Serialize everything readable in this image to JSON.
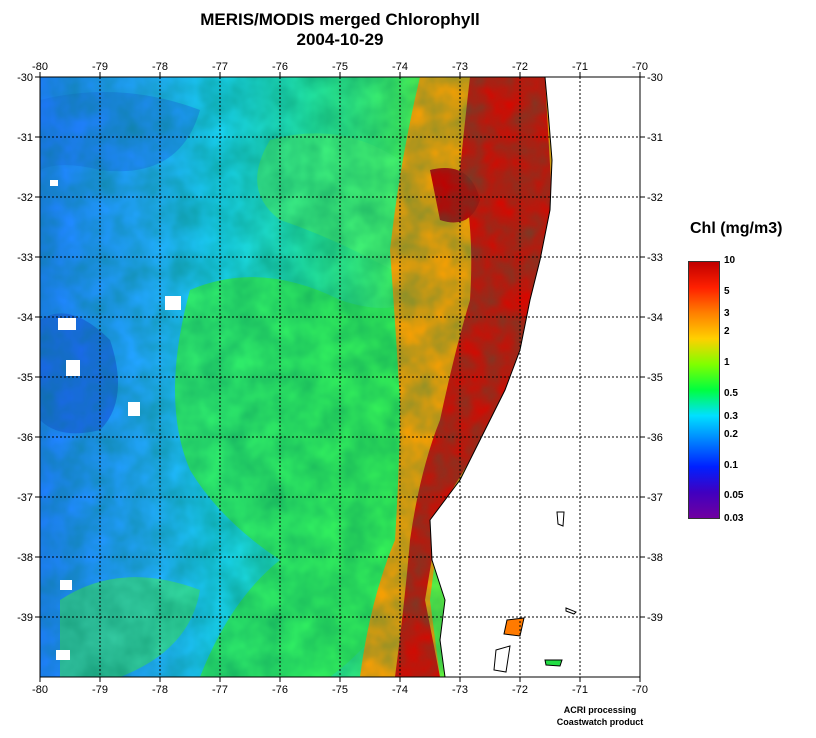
{
  "title_line1": "MERIS/MODIS merged Chlorophyll",
  "title_line2": "2004-10-29",
  "x_ticks": [
    "-80",
    "-79",
    "-78",
    "-77",
    "-76",
    "-75",
    "-74",
    "-73",
    "-72",
    "-71",
    "-70"
  ],
  "y_ticks": [
    "-30",
    "-31",
    "-32",
    "-33",
    "-34",
    "-35",
    "-36",
    "-37",
    "-38",
    "-39"
  ],
  "lon_range": [
    -80,
    -70
  ],
  "lat_range": [
    -30,
    -40
  ],
  "grid": "dashed",
  "colorbar": {
    "title": "Chl (mg/m3)",
    "labels": [
      "10",
      "5",
      "3",
      "2",
      "1",
      "0.5",
      "0.3",
      "0.2",
      "0.1",
      "0.05",
      "0.03"
    ],
    "scale": "log",
    "colors": [
      "#c00000",
      "#ff2000",
      "#ff8000",
      "#ffd000",
      "#80ff00",
      "#00ff40",
      "#00e0ff",
      "#0080ff",
      "#0020ff",
      "#4000c0",
      "#7000a0"
    ]
  },
  "field_colors": {
    "offshore": "#1e90ff",
    "mid_ocean": "#00ccff",
    "transition": "#33ff66",
    "coastal": "#ff7700",
    "upwelling": "#cc0000",
    "land": "#ffffff",
    "cloud": "#ffffff",
    "coastline": "#000000"
  },
  "credit_line1": "ACRI processing",
  "credit_line2": "Coastwatch product"
}
